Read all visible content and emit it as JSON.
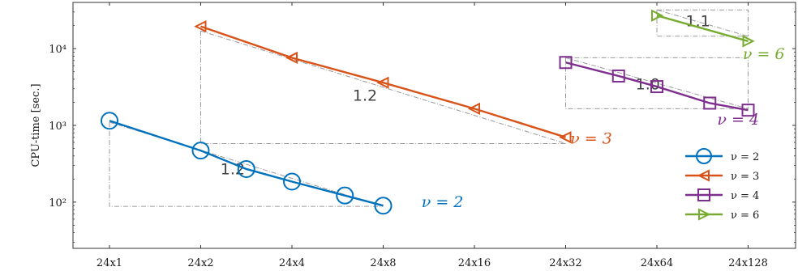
{
  "chart_data": {
    "type": "line",
    "title": "",
    "xlabel": "",
    "ylabel": "CPU-time [sec.]",
    "y_scale": "log",
    "ylim": [
      25,
      40000
    ],
    "y_ticks": [
      {
        "value": 100,
        "label": "10²"
      },
      {
        "value": 1000,
        "label": "10³"
      },
      {
        "value": 10000,
        "label": "10⁴"
      }
    ],
    "categories": [
      "24x1",
      "24x2",
      "24x4",
      "24x8",
      "24x16",
      "24x32",
      "24x64",
      "24x128"
    ],
    "legend_position": "bottom-right",
    "series": [
      {
        "name": "ν = 2",
        "label": "ν = 2",
        "color": "#0072bd",
        "marker": "circle",
        "points": [
          [
            0,
            1150
          ],
          [
            1,
            470
          ],
          [
            1.5,
            270
          ],
          [
            2,
            185
          ],
          [
            2.58,
            122
          ],
          [
            3,
            90
          ]
        ]
      },
      {
        "name": "ν = 3",
        "label": "ν = 3",
        "color": "#d95319",
        "marker": "triangle-left",
        "points": [
          [
            1,
            19500
          ],
          [
            2,
            7600
          ],
          [
            3,
            3600
          ],
          [
            4,
            1650
          ],
          [
            5,
            700
          ]
        ]
      },
      {
        "name": "ν = 4",
        "label": "ν = 4",
        "color": "#7e2f8e",
        "marker": "square",
        "points": [
          [
            5,
            6600
          ],
          [
            5.58,
            4400
          ],
          [
            6,
            3200
          ],
          [
            6.58,
            1950
          ],
          [
            7,
            1580
          ]
        ]
      },
      {
        "name": "ν = 6",
        "label": "ν = 6",
        "color": "#77ac30",
        "marker": "triangle-right",
        "points": [
          [
            6,
            27000
          ],
          [
            7,
            12500
          ]
        ]
      }
    ],
    "slope_triangles": [
      {
        "label": "1.2",
        "x1": 0,
        "x2": 3,
        "y_high": 1100,
        "y_low": 88
      },
      {
        "label": "1.2",
        "x1": 1,
        "x2": 5,
        "y_high": 17000,
        "y_low": 580
      },
      {
        "label": "1.0",
        "x1": 5,
        "x2": 7,
        "y_high": 7600,
        "y_low": 1650
      },
      {
        "label": "1.1",
        "x1": 6,
        "x2": 7,
        "y_high": 32000,
        "y_low": 14500
      }
    ]
  }
}
